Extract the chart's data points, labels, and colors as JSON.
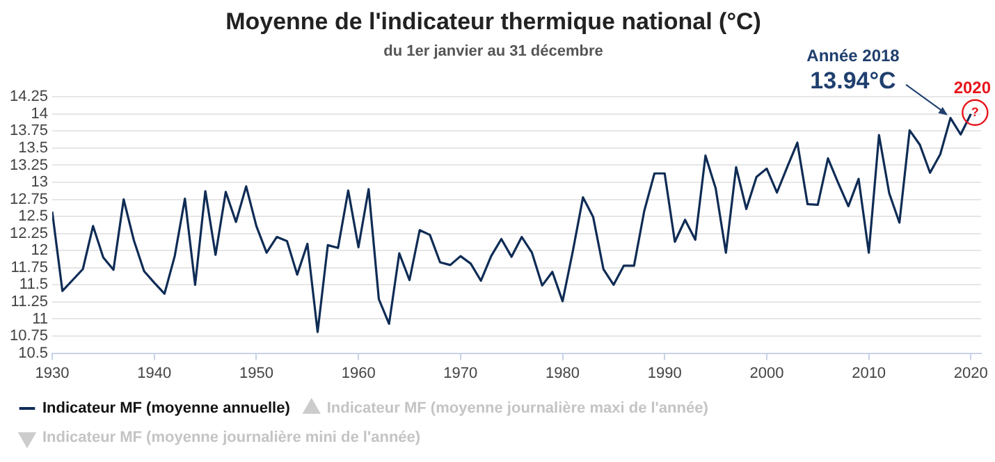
{
  "chart_data": {
    "type": "line",
    "title": "Moyenne de l'indicateur thermique national (°C)",
    "subtitle": "du 1er janvier au 31 décembre",
    "x": [
      1930,
      1931,
      1932,
      1933,
      1934,
      1935,
      1936,
      1937,
      1938,
      1939,
      1940,
      1941,
      1942,
      1943,
      1944,
      1945,
      1946,
      1947,
      1948,
      1949,
      1950,
      1951,
      1952,
      1953,
      1954,
      1955,
      1956,
      1957,
      1958,
      1959,
      1960,
      1961,
      1962,
      1963,
      1964,
      1965,
      1966,
      1967,
      1968,
      1969,
      1970,
      1971,
      1972,
      1973,
      1974,
      1975,
      1976,
      1977,
      1978,
      1979,
      1980,
      1981,
      1982,
      1983,
      1984,
      1985,
      1986,
      1987,
      1988,
      1989,
      1990,
      1991,
      1992,
      1993,
      1994,
      1995,
      1996,
      1997,
      1998,
      1999,
      2000,
      2001,
      2002,
      2003,
      2004,
      2005,
      2006,
      2007,
      2008,
      2009,
      2010,
      2011,
      2012,
      2013,
      2014,
      2015,
      2016,
      2017,
      2018,
      2019,
      2020
    ],
    "series": [
      {
        "name": "Indicateur MF (moyenne annuelle)",
        "color": "#0f2c55",
        "marker": "none",
        "values": [
          12.57,
          11.41,
          11.57,
          11.73,
          12.36,
          11.9,
          11.72,
          12.75,
          12.15,
          11.7,
          11.53,
          11.37,
          11.92,
          12.76,
          11.5,
          12.87,
          11.94,
          12.86,
          12.42,
          12.94,
          12.36,
          11.97,
          12.2,
          12.14,
          11.65,
          12.1,
          10.81,
          12.08,
          12.04,
          12.88,
          12.05,
          12.9,
          11.29,
          10.93,
          11.96,
          11.57,
          12.3,
          12.23,
          11.83,
          11.79,
          11.92,
          11.81,
          11.56,
          11.92,
          12.17,
          11.91,
          12.2,
          11.97,
          11.49,
          11.69,
          11.26,
          11.99,
          12.78,
          12.49,
          11.73,
          11.5,
          11.78,
          11.78,
          12.58,
          13.13,
          13.13,
          12.13,
          12.45,
          12.16,
          13.39,
          12.91,
          11.97,
          13.22,
          12.61,
          13.08,
          13.2,
          12.85,
          13.22,
          13.58,
          12.68,
          12.67,
          13.35,
          12.99,
          12.65,
          13.05,
          11.97,
          13.69,
          12.84,
          12.41,
          13.76,
          13.55,
          13.14,
          13.41,
          13.94,
          13.7,
          14.0
        ]
      },
      {
        "name": "Indicateur MF (moyenne journalière maxi de l'année)",
        "color": "#cccccc",
        "marker": "triangle",
        "values": [
          null,
          null,
          null,
          null,
          null,
          null,
          null,
          null,
          null,
          null,
          null,
          null,
          null,
          null,
          null,
          null,
          null,
          null,
          null,
          null,
          null,
          null,
          null,
          null,
          null,
          null,
          null,
          null,
          null,
          null,
          null,
          null,
          null,
          null,
          null,
          null,
          null,
          null,
          null,
          null,
          null,
          null,
          null,
          null,
          null,
          null,
          null,
          null,
          null,
          null,
          null,
          null,
          null,
          null,
          null,
          null,
          null,
          null,
          null,
          null,
          null,
          null,
          null,
          null,
          null,
          null,
          null,
          null,
          null,
          null,
          null,
          null,
          null,
          null,
          null,
          null,
          null,
          null,
          null,
          null,
          null,
          null,
          null,
          null,
          null,
          null,
          null,
          null,
          null,
          null,
          null
        ]
      },
      {
        "name": "Indicateur MF (moyenne journalière mini de l'année)",
        "color": "#cccccc",
        "marker": "triangle-down",
        "values": [
          null,
          null,
          null,
          null,
          null,
          null,
          null,
          null,
          null,
          null,
          null,
          null,
          null,
          null,
          null,
          null,
          null,
          null,
          null,
          null,
          null,
          null,
          null,
          null,
          null,
          null,
          null,
          null,
          null,
          null,
          null,
          null,
          null,
          null,
          null,
          null,
          null,
          null,
          null,
          null,
          null,
          null,
          null,
          null,
          null,
          null,
          null,
          null,
          null,
          null,
          null,
          null,
          null,
          null,
          null,
          null,
          null,
          null,
          null,
          null,
          null,
          null,
          null,
          null,
          null,
          null,
          null,
          null,
          null,
          null,
          null,
          null,
          null,
          null,
          null,
          null,
          null,
          null,
          null,
          null,
          null,
          null,
          null,
          null,
          null,
          null,
          null,
          null,
          null,
          null,
          null
        ]
      }
    ],
    "xlim": [
      1930,
      2021
    ],
    "xticks": [
      1930,
      1940,
      1950,
      1960,
      1970,
      1980,
      1990,
      2000,
      2010,
      2020
    ],
    "ylim": [
      10.5,
      14.25
    ],
    "yticks": [
      10.5,
      10.75,
      11,
      11.25,
      11.5,
      11.75,
      12,
      12.25,
      12.5,
      12.75,
      13,
      13.25,
      13.5,
      13.75,
      14,
      14.25
    ],
    "grid": "y",
    "legend": "bottom",
    "line_style": "solid",
    "annotations": [
      "Année 2018",
      {
        "text": "13.94°C",
        "x": 2018,
        "y": 13.94
      },
      "2020",
      {
        "text": "?",
        "x": 2020,
        "y": 14.0
      }
    ]
  }
}
